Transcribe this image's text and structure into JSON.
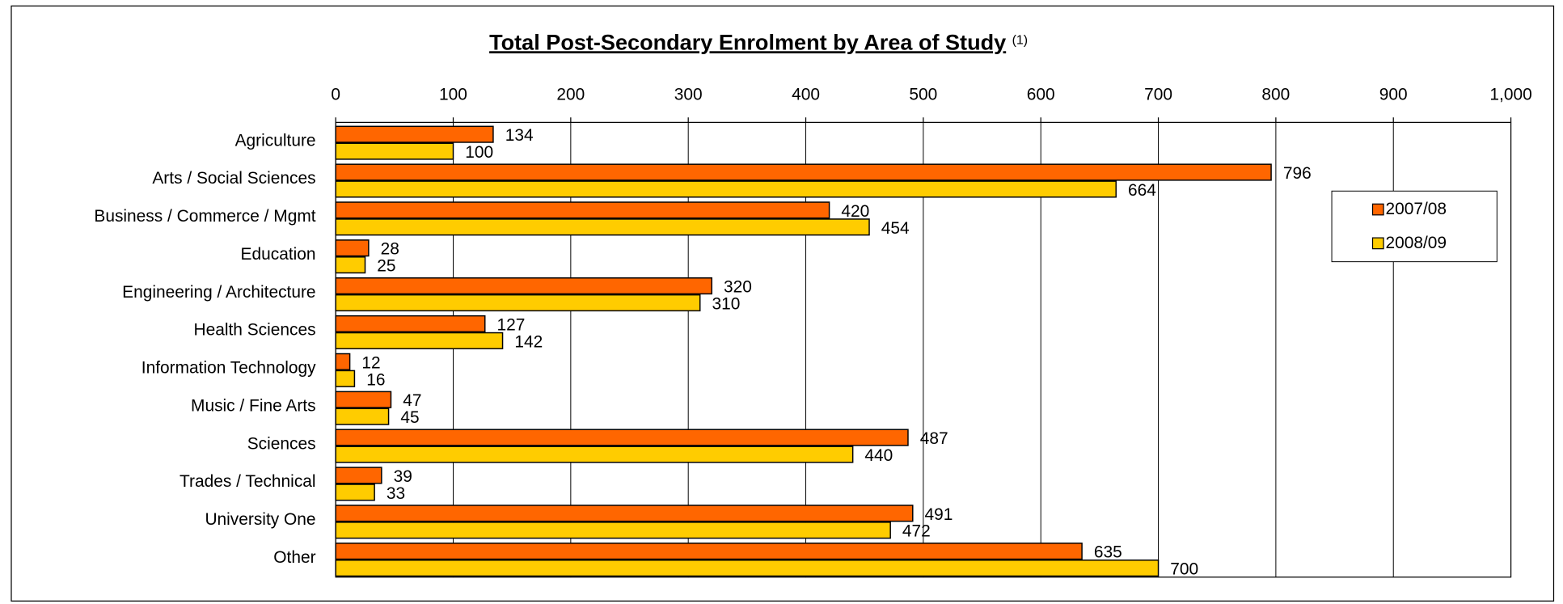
{
  "chart_data": {
    "type": "hbar",
    "title": "Total Post-Secondary Enrolment by Area of Study",
    "title_note": "(1)",
    "categories": [
      "Agriculture",
      "Arts / Social Sciences",
      "Business / Commerce / Mgmt",
      "Education",
      "Engineering / Architecture",
      "Health Sciences",
      "Information Technology",
      "Music / Fine Arts",
      "Sciences",
      "Trades / Technical",
      "University One",
      "Other"
    ],
    "series": [
      {
        "name": "2007/08",
        "color": "#ff6600",
        "values": [
          134,
          796,
          420,
          28,
          320,
          127,
          12,
          47,
          487,
          39,
          491,
          635
        ]
      },
      {
        "name": "2008/09",
        "color": "#ffcc00",
        "values": [
          100,
          664,
          454,
          25,
          310,
          142,
          16,
          45,
          440,
          33,
          472,
          700
        ]
      }
    ],
    "xlim": [
      0,
      1000
    ],
    "xticks": [
      0,
      100,
      200,
      300,
      400,
      500,
      600,
      700,
      800,
      900,
      {
        "value": 1000,
        "label": "1,000"
      }
    ],
    "grid": true,
    "legend": "right"
  }
}
